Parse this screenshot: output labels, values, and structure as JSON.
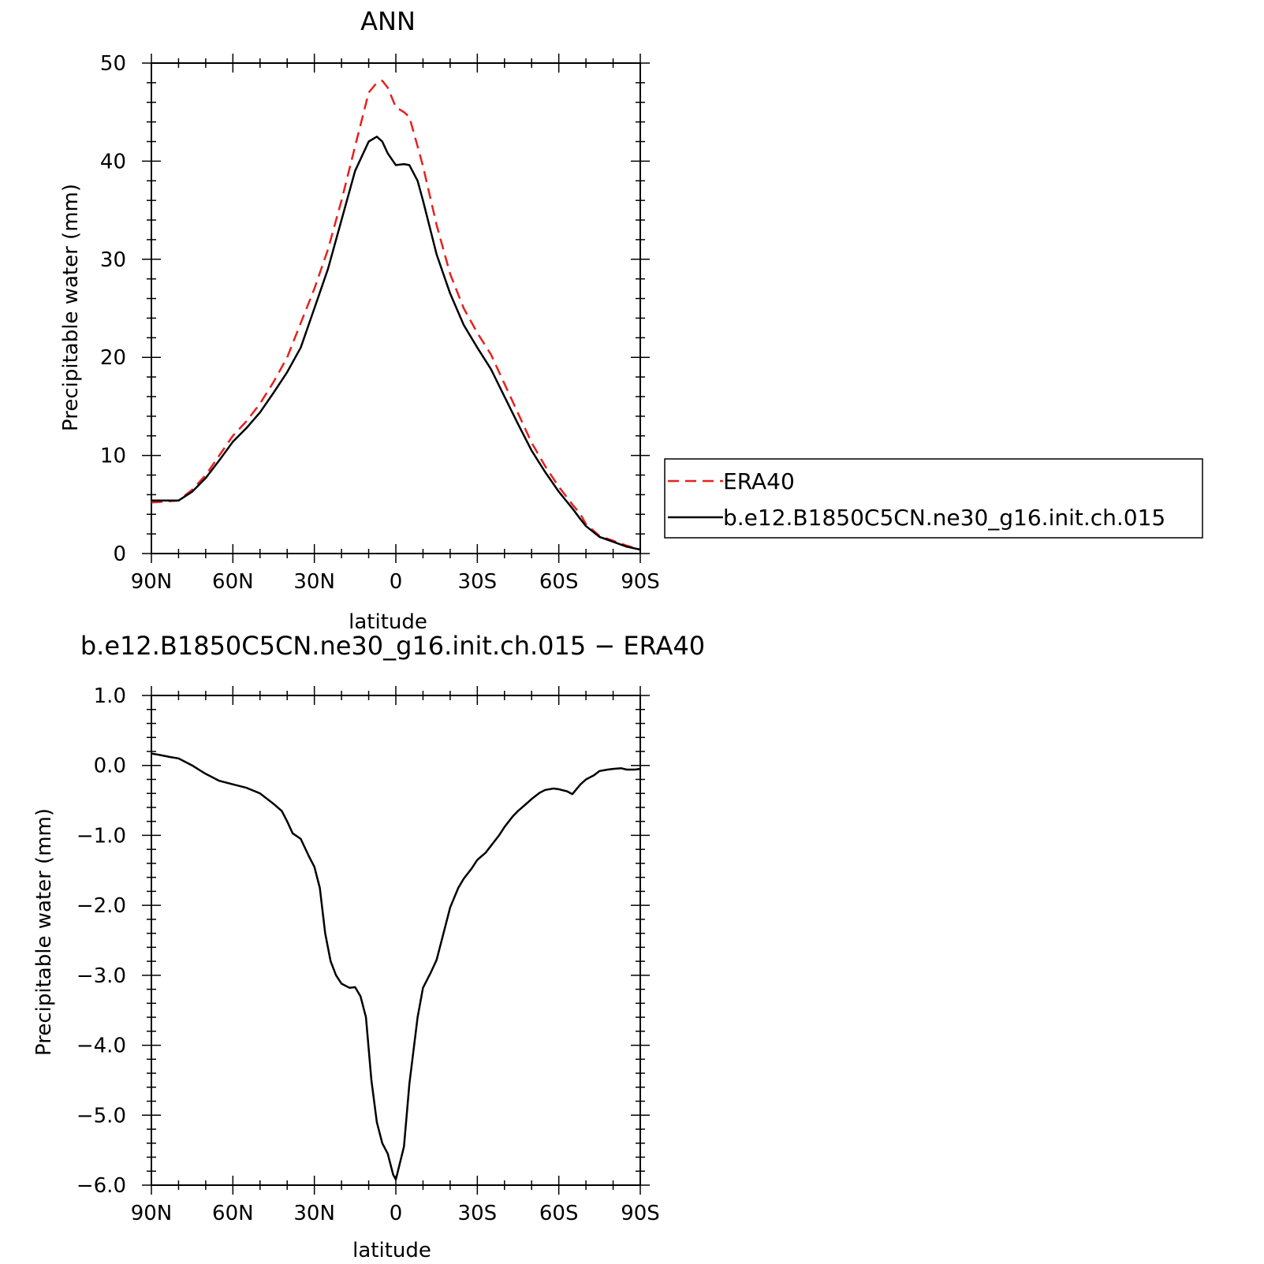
{
  "chart_data": [
    {
      "type": "line",
      "title": "ANN",
      "xlabel": "latitude",
      "ylabel": "Precipitable water (mm)",
      "xlim": [
        90,
        -90
      ],
      "ylim": [
        0,
        50
      ],
      "x_ticks": [
        90,
        60,
        30,
        0,
        -30,
        -60,
        -90
      ],
      "x_tick_labels": [
        "90N",
        "60N",
        "30N",
        "0",
        "30S",
        "60S",
        "90S"
      ],
      "y_ticks": [
        0,
        10,
        20,
        30,
        40,
        50
      ],
      "y_tick_labels": [
        "0",
        "10",
        "20",
        "30",
        "40",
        "50"
      ],
      "grid": false,
      "legend_position": "right",
      "x": [
        90,
        85,
        80,
        75,
        70,
        65,
        60,
        55,
        50,
        45,
        40,
        35,
        30,
        25,
        20,
        15,
        10,
        7,
        5,
        3,
        0,
        -3,
        -5,
        -8,
        -10,
        -15,
        -20,
        -25,
        -30,
        -35,
        -40,
        -45,
        -50,
        -55,
        -60,
        -65,
        -68,
        -70,
        -75,
        -80,
        -85,
        -90
      ],
      "series": [
        {
          "name": "ERA40",
          "color": "#e8201c",
          "dash": "dashed",
          "values": [
            5.2,
            5.3,
            5.4,
            6.5,
            8.0,
            10.0,
            12.0,
            13.5,
            15.3,
            17.5,
            20.0,
            23.5,
            27.0,
            31.0,
            36.0,
            41.5,
            47.0,
            48.0,
            48.2,
            47.5,
            45.5,
            45.0,
            44.5,
            41.5,
            39.5,
            33.5,
            28.5,
            25.0,
            22.5,
            20.3,
            17.3,
            14.3,
            11.3,
            8.9,
            6.8,
            5.0,
            4.0,
            3.0,
            1.8,
            1.3,
            0.8,
            0.4
          ]
        },
        {
          "name": "b.e12.B1850C5CN.ne30_g16.init.ch.015",
          "color": "#000000",
          "dash": "solid",
          "values": [
            5.4,
            5.4,
            5.4,
            6.3,
            7.7,
            9.5,
            11.4,
            12.8,
            14.4,
            16.4,
            18.5,
            21.0,
            25.0,
            29.0,
            34.0,
            39.0,
            42.0,
            42.5,
            42.0,
            40.8,
            39.6,
            39.7,
            39.6,
            38.0,
            36.0,
            30.5,
            26.5,
            23.3,
            21.0,
            18.8,
            16.0,
            13.2,
            10.5,
            8.3,
            6.3,
            4.6,
            3.5,
            2.8,
            1.7,
            1.2,
            0.7,
            0.4
          ]
        }
      ]
    },
    {
      "type": "line",
      "title": "b.e12.B1850C5CN.ne30_g16.init.ch.015 − ERA40",
      "xlabel": "latitude",
      "ylabel": "Precipitable water (mm)",
      "xlim": [
        90,
        -90
      ],
      "ylim": [
        -6,
        1
      ],
      "x_ticks": [
        90,
        60,
        30,
        0,
        -30,
        -60,
        -90
      ],
      "x_tick_labels": [
        "90N",
        "60N",
        "30N",
        "0",
        "30S",
        "60S",
        "90S"
      ],
      "y_ticks": [
        1,
        0,
        -1,
        -2,
        -3,
        -4,
        -5,
        -6
      ],
      "y_tick_labels": [
        "1.0",
        "0.0",
        "−1.0",
        "−2.0",
        "−3.0",
        "−4.0",
        "−5.0",
        "−6.0"
      ],
      "grid": false,
      "x": [
        90,
        87,
        83,
        80,
        78,
        75,
        73,
        70,
        65,
        60,
        55,
        50,
        45,
        42,
        40,
        38,
        35,
        32,
        30,
        28,
        26,
        24,
        22,
        20,
        17,
        15,
        13,
        11,
        9,
        7,
        5,
        3,
        1,
        0,
        -3,
        -5,
        -8,
        -10,
        -13,
        -15,
        -17,
        -20,
        -23,
        -25,
        -28,
        -30,
        -33,
        -35,
        -38,
        -40,
        -43,
        -45,
        -48,
        -50,
        -53,
        -55,
        -58,
        -60,
        -63,
        -65,
        -68,
        -70,
        -73,
        -75,
        -78,
        -80,
        -83,
        -85,
        -88,
        -90
      ],
      "series": [
        {
          "name": "",
          "color": "#000000",
          "dash": "solid",
          "values": [
            0.17,
            0.15,
            0.12,
            0.1,
            0.06,
            0.0,
            -0.05,
            -0.12,
            -0.22,
            -0.27,
            -0.32,
            -0.4,
            -0.55,
            -0.65,
            -0.8,
            -0.97,
            -1.05,
            -1.3,
            -1.45,
            -1.75,
            -2.4,
            -2.8,
            -3.0,
            -3.12,
            -3.18,
            -3.17,
            -3.3,
            -3.6,
            -4.5,
            -5.1,
            -5.4,
            -5.55,
            -5.85,
            -5.92,
            -5.45,
            -4.55,
            -3.6,
            -3.18,
            -2.95,
            -2.78,
            -2.48,
            -2.03,
            -1.75,
            -1.62,
            -1.47,
            -1.35,
            -1.25,
            -1.15,
            -1.0,
            -0.88,
            -0.73,
            -0.65,
            -0.55,
            -0.48,
            -0.39,
            -0.35,
            -0.33,
            -0.34,
            -0.37,
            -0.41,
            -0.27,
            -0.2,
            -0.14,
            -0.08,
            -0.06,
            -0.05,
            -0.04,
            -0.06,
            -0.06,
            -0.05
          ]
        }
      ]
    }
  ]
}
